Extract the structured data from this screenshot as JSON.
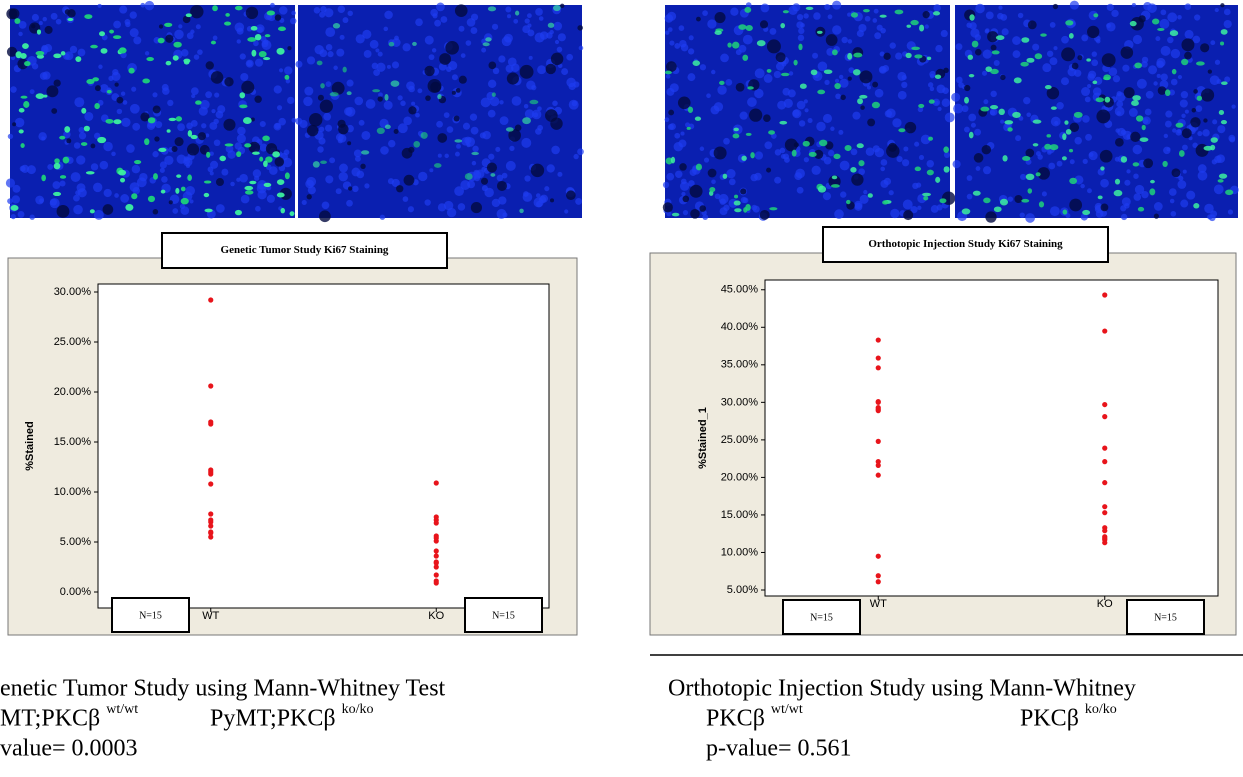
{
  "chart_data": [
    {
      "type": "strip",
      "title": "Genetic Tumor Study Ki67 Staining",
      "y_label": "%Stained",
      "categories": [
        "WT",
        "KO"
      ],
      "values": [
        [
          29.2,
          20.6,
          17.0,
          16.8,
          12.2,
          12.0,
          11.8,
          10.8,
          7.8,
          7.2,
          7.0,
          6.6,
          6.0,
          5.9,
          5.5
        ],
        [
          10.9,
          7.5,
          7.2,
          6.9,
          5.6,
          5.4,
          5.1,
          4.1,
          3.6,
          3.0,
          2.9,
          2.5,
          1.7,
          1.1,
          0.9
        ]
      ],
      "color": "#e8141b",
      "ylim": [
        -1.6,
        30.8
      ],
      "yticks": [
        {
          "value": 0,
          "label": "0.00%"
        },
        {
          "value": 5,
          "label": "5.00%"
        },
        {
          "value": 10,
          "label": "10.00%"
        },
        {
          "value": 15,
          "label": "15.00%"
        },
        {
          "value": 20,
          "label": "20.00%"
        },
        {
          "value": 25,
          "label": "25.00%"
        },
        {
          "value": 30,
          "label": "30.00%"
        }
      ],
      "annotations": [
        "N=15",
        "N=15"
      ]
    },
    {
      "type": "strip",
      "title": "Orthotopic Injection Study Ki67 Staining",
      "y_label": "%Stained_1",
      "categories": [
        "WT",
        "KO"
      ],
      "values": [
        [
          38.3,
          35.9,
          34.6,
          30.1,
          30.0,
          29.3,
          29.1,
          28.9,
          24.8,
          22.1,
          21.6,
          20.3,
          9.5,
          6.9,
          6.1
        ],
        [
          44.3,
          39.5,
          29.7,
          28.1,
          23.9,
          22.1,
          19.3,
          16.1,
          15.3,
          13.3,
          12.9,
          12.1,
          11.9,
          11.7,
          11.3
        ]
      ],
      "color": "#e8141b",
      "ylim": [
        4.2,
        46.3
      ],
      "yticks": [
        {
          "value": 5,
          "label": "5.00%"
        },
        {
          "value": 10,
          "label": "10.00%"
        },
        {
          "value": 15,
          "label": "15.00%"
        },
        {
          "value": 20,
          "label": "20.00%"
        },
        {
          "value": 25,
          "label": "25.00%"
        },
        {
          "value": 30,
          "label": "30.00%"
        },
        {
          "value": 35,
          "label": "35.00%"
        },
        {
          "value": 40,
          "label": "40.00%"
        },
        {
          "value": 45,
          "label": "45.00%"
        }
      ],
      "annotations": [
        "N=15",
        "N=15"
      ]
    }
  ],
  "captions": [
    {
      "title": "enetic Tumor Study using Mann-Whitney Test",
      "group1": "MT;PKCβ",
      "group1_sup": "wt/wt",
      "group2": "PyMT;PKCβ",
      "group2_sup": "ko/ko",
      "pvalue": "value= 0.0003"
    },
    {
      "title": "Orthotopic Injection Study using Mann-Whitney",
      "group1": "PKCβ",
      "group1_sup": "wt/wt",
      "group2": "PKCβ",
      "group2_sup": "ko/ko",
      "pvalue": "p-value= 0.561"
    }
  ]
}
